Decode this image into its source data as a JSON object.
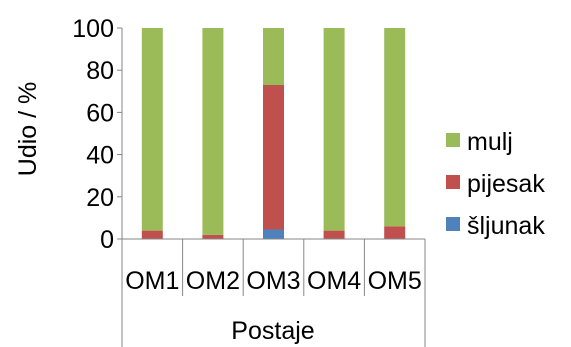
{
  "chart_data": {
    "type": "bar",
    "stacked": true,
    "categories": [
      "OM1",
      "OM2",
      "OM3",
      "OM4",
      "OM5"
    ],
    "series": [
      {
        "name": "šljunak",
        "color": "#4f81bd",
        "values": [
          0,
          0,
          4.5,
          0,
          0
        ]
      },
      {
        "name": "pijesak",
        "color": "#c0504d",
        "values": [
          4,
          2,
          68.5,
          4,
          6
        ]
      },
      {
        "name": "mulj",
        "color": "#9bbb59",
        "values": [
          96,
          98,
          27,
          96,
          94
        ]
      }
    ],
    "yticks": [
      0,
      20,
      40,
      60,
      80,
      100
    ],
    "ylim": [
      0,
      100
    ],
    "ylabel": "Udio / %",
    "xlabel": "Postaje",
    "legend_order": [
      "mulj",
      "pijesak",
      "šljunak"
    ],
    "legend_position": "right",
    "grid": false
  }
}
